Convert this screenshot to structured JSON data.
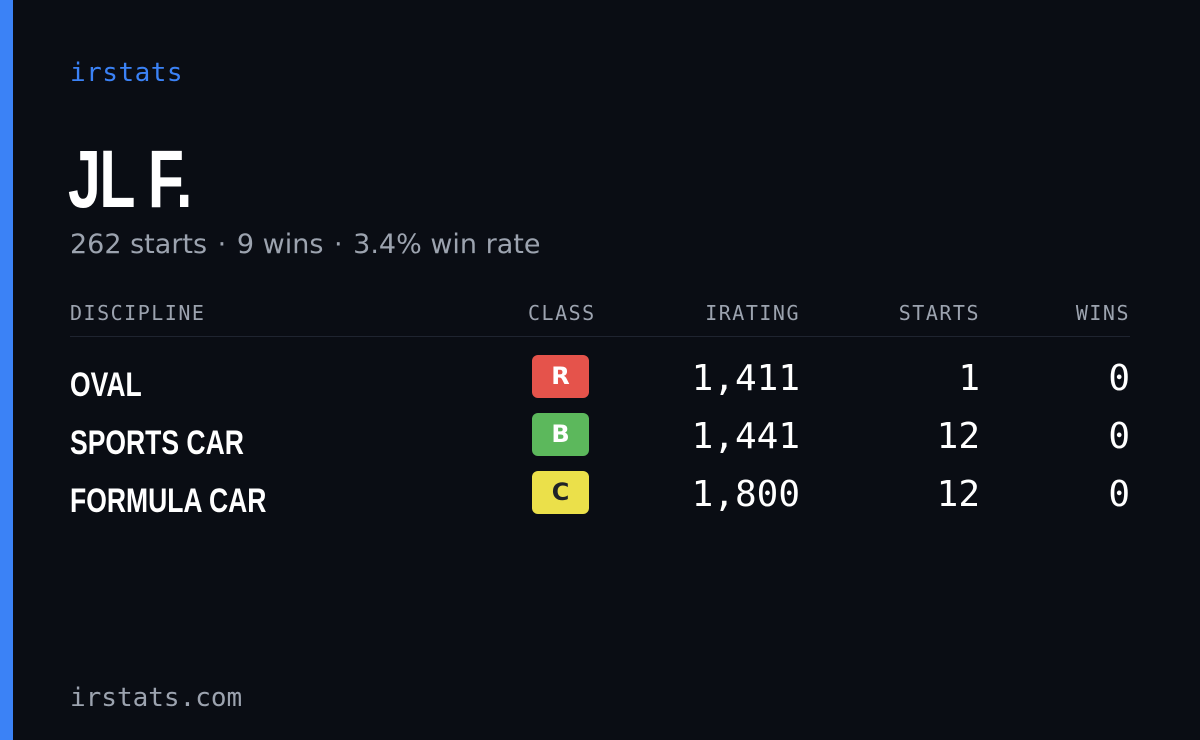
{
  "brand": {
    "name": "irstats",
    "accent_color": "#3b82f6"
  },
  "driver": {
    "name": "JL F.",
    "starts_text": "262 starts",
    "wins_text": "9 wins",
    "win_rate_text": "3.4% win rate",
    "separator": "·"
  },
  "table": {
    "headers": {
      "discipline": "DISCIPLINE",
      "class": "CLASS",
      "irating": "IRATING",
      "starts": "STARTS",
      "wins": "WINS"
    },
    "rows": [
      {
        "discipline": "OVAL",
        "class": "R",
        "class_color": "#e5534b",
        "class_text_color": "#ffffff",
        "irating": "1,411",
        "starts": "1",
        "wins": "0"
      },
      {
        "discipline": "SPORTS CAR",
        "class": "B",
        "class_color": "#5cb85c",
        "class_text_color": "#ffffff",
        "irating": "1,441",
        "starts": "12",
        "wins": "0"
      },
      {
        "discipline": "FORMULA CAR",
        "class": "C",
        "class_color": "#ebe04a",
        "class_text_color": "#1f2328",
        "irating": "1,800",
        "starts": "12",
        "wins": "0"
      }
    ]
  },
  "footer": {
    "domain": "irstats.com"
  }
}
